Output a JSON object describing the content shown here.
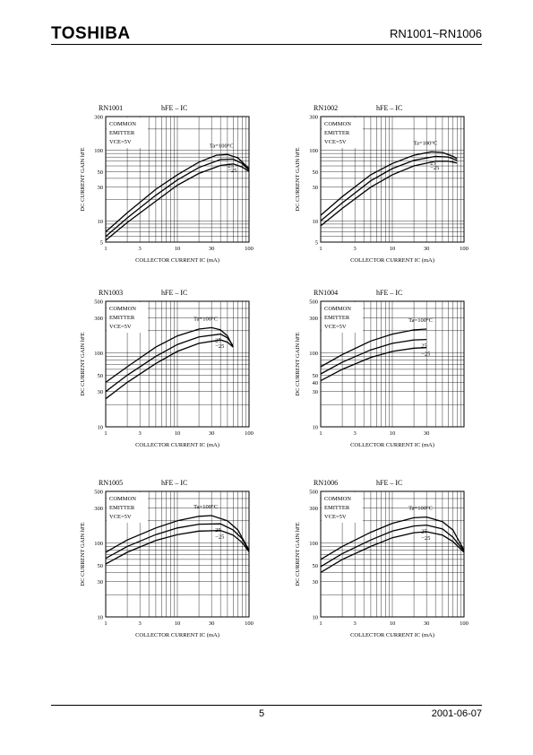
{
  "header": {
    "logo": "TOSHIBA",
    "part_numbers": "RN1001~RN1006"
  },
  "footer": {
    "page": "5",
    "date": "2001-06-07"
  },
  "chart_data": [
    {
      "type": "line",
      "device": "RN1001",
      "title": "hFE – IC",
      "xlabel": "COLLECTOR CURRENT  IC  (mA)",
      "ylabel": "DC CURRENT GAIN  hFE",
      "condition": [
        "COMMON",
        "EMITTER",
        "VCE=5V"
      ],
      "xlim": [
        1,
        100
      ],
      "ylim": [
        5,
        300
      ],
      "log_x": true,
      "log_y": true,
      "xticks": [
        1,
        3,
        10,
        30,
        100
      ],
      "yticks": [
        5,
        10,
        30,
        50,
        100,
        300
      ],
      "series": [
        {
          "name": "Ta=100°C",
          "x": [
            1,
            2,
            5,
            10,
            20,
            35,
            50,
            70,
            100
          ],
          "y": [
            7,
            13,
            28,
            45,
            68,
            85,
            87,
            78,
            55
          ]
        },
        {
          "name": "25",
          "x": [
            1,
            2,
            5,
            10,
            20,
            40,
            60,
            80,
            100
          ],
          "y": [
            6,
            11,
            23,
            38,
            57,
            74,
            75,
            65,
            52
          ]
        },
        {
          "name": "−25",
          "x": [
            1,
            2,
            5,
            10,
            20,
            40,
            60,
            80,
            100
          ],
          "y": [
            5.3,
            9.5,
            19,
            32,
            47,
            61,
            64,
            58,
            50
          ]
        }
      ]
    },
    {
      "type": "line",
      "device": "RN1002",
      "title": "hFE – IC",
      "xlabel": "COLLECTOR CURRENT  IC  (mA)",
      "ylabel": "DC CURRENT GAIN  hFE",
      "condition": [
        "COMMON",
        "EMITTER",
        "VCE=5V"
      ],
      "xlim": [
        1,
        100
      ],
      "ylim": [
        5,
        300
      ],
      "log_x": true,
      "log_y": true,
      "xticks": [
        1,
        3,
        10,
        30,
        100
      ],
      "yticks": [
        5,
        10,
        30,
        50,
        100,
        300
      ],
      "series": [
        {
          "name": "Ta=100°C",
          "x": [
            1,
            2,
            5,
            10,
            20,
            35,
            50,
            70,
            80
          ],
          "y": [
            12,
            22,
            45,
            65,
            85,
            95,
            93,
            82,
            76
          ]
        },
        {
          "name": "25",
          "x": [
            1,
            2,
            5,
            10,
            20,
            40,
            60,
            80
          ],
          "y": [
            10,
            18,
            37,
            55,
            72,
            82,
            80,
            72
          ]
        },
        {
          "name": "−25",
          "x": [
            1,
            2,
            5,
            10,
            20,
            40,
            60,
            80
          ],
          "y": [
            8.5,
            15,
            30,
            45,
            60,
            70,
            70,
            66
          ]
        }
      ]
    },
    {
      "type": "line",
      "device": "RN1003",
      "title": "hFE – IC",
      "xlabel": "COLLECTOR CURRENT  IC  (mA)",
      "ylabel": "DC CURRENT GAIN  hFE",
      "condition": [
        "COMMON",
        "EMITTER",
        "VCE=5V"
      ],
      "xlim": [
        1,
        100
      ],
      "ylim": [
        10,
        500
      ],
      "log_x": true,
      "log_y": true,
      "xticks": [
        1,
        3,
        10,
        30,
        100
      ],
      "yticks": [
        10,
        30,
        50,
        100,
        300,
        500
      ],
      "series": [
        {
          "name": "Ta=100°C",
          "x": [
            1,
            2,
            5,
            10,
            20,
            30,
            40,
            50,
            60
          ],
          "y": [
            40,
            65,
            120,
            170,
            210,
            220,
            205,
            170,
            120
          ]
        },
        {
          "name": "25",
          "x": [
            1,
            2,
            5,
            10,
            20,
            40,
            50,
            60
          ],
          "y": [
            30,
            50,
            90,
            130,
            165,
            180,
            160,
            125
          ]
        },
        {
          "name": "−25",
          "x": [
            1,
            2,
            5,
            10,
            20,
            40,
            50,
            60
          ],
          "y": [
            24,
            40,
            72,
            105,
            135,
            150,
            140,
            120
          ]
        }
      ]
    },
    {
      "type": "line",
      "device": "RN1004",
      "title": "hFE – IC",
      "xlabel": "COLLECTOR CURRENT  IC  (mA)",
      "ylabel": "DC CURRENT GAIN  hFE",
      "condition": [
        "COMMON",
        "EMITTER",
        "VCE=5V"
      ],
      "xlim": [
        1,
        100
      ],
      "ylim": [
        10,
        500
      ],
      "log_x": true,
      "log_y": true,
      "xticks": [
        1,
        3,
        10,
        30
      ],
      "yticks": [
        10,
        30,
        40,
        50,
        100,
        300,
        500
      ],
      "series": [
        {
          "name": "Ta=100°C",
          "x": [
            1,
            2,
            5,
            10,
            20,
            30
          ],
          "y": [
            65,
            95,
            145,
            180,
            205,
            210
          ]
        },
        {
          "name": "25",
          "x": [
            1,
            2,
            5,
            10,
            20,
            30
          ],
          "y": [
            52,
            75,
            110,
            135,
            150,
            152
          ]
        },
        {
          "name": "−25",
          "x": [
            1,
            2,
            5,
            10,
            20,
            30
          ],
          "y": [
            42,
            60,
            87,
            105,
            116,
            118
          ]
        }
      ]
    },
    {
      "type": "line",
      "device": "RN1005",
      "title": "hFE – IC",
      "xlabel": "COLLECTOR CURRENT  IC  (mA)",
      "ylabel": "DC CURRENT GAIN  hFE",
      "condition": [
        "COMMON",
        "EMITTER",
        "VCE=5V"
      ],
      "xlim": [
        1,
        100
      ],
      "ylim": [
        10,
        500
      ],
      "log_x": true,
      "log_y": true,
      "xticks": [
        1,
        3,
        10,
        30,
        100
      ],
      "yticks": [
        10,
        30,
        50,
        100,
        300,
        500
      ],
      "series": [
        {
          "name": "Ta=100°C",
          "x": [
            1,
            2,
            5,
            10,
            20,
            30,
            50,
            70,
            100
          ],
          "y": [
            75,
            110,
            160,
            200,
            230,
            235,
            200,
            150,
            80
          ]
        },
        {
          "name": "25",
          "x": [
            1,
            2,
            5,
            10,
            20,
            40,
            60,
            80,
            100
          ],
          "y": [
            62,
            90,
            130,
            160,
            180,
            182,
            150,
            115,
            78
          ]
        },
        {
          "name": "−25",
          "x": [
            1,
            2,
            5,
            10,
            20,
            40,
            60,
            80,
            100
          ],
          "y": [
            52,
            75,
            108,
            130,
            145,
            148,
            128,
            102,
            76
          ]
        }
      ]
    },
    {
      "type": "line",
      "device": "RN1006",
      "title": "hFE – IC",
      "xlabel": "COLLECTOR CURRENT  IC  (mA)",
      "ylabel": "DC CURRENT GAIN  hFE",
      "condition": [
        "COMMON",
        "EMITTER",
        "VCE=5V"
      ],
      "xlim": [
        1,
        100
      ],
      "ylim": [
        10,
        500
      ],
      "log_x": true,
      "log_y": true,
      "xticks": [
        1,
        3,
        10,
        30,
        100
      ],
      "yticks": [
        10,
        30,
        50,
        100,
        300,
        500
      ],
      "series": [
        {
          "name": "Ta=100°C",
          "x": [
            1,
            2,
            5,
            10,
            20,
            30,
            50,
            70,
            100
          ],
          "y": [
            60,
            90,
            140,
            185,
            220,
            225,
            195,
            150,
            80
          ]
        },
        {
          "name": "25",
          "x": [
            1,
            2,
            5,
            10,
            20,
            30,
            50,
            70,
            100
          ],
          "y": [
            48,
            72,
            110,
            145,
            170,
            175,
            155,
            120,
            78
          ]
        },
        {
          "name": "−25",
          "x": [
            1,
            2,
            5,
            10,
            20,
            30,
            50,
            70,
            100
          ],
          "y": [
            40,
            60,
            90,
            118,
            138,
            142,
            128,
            105,
            75
          ]
        }
      ]
    }
  ]
}
